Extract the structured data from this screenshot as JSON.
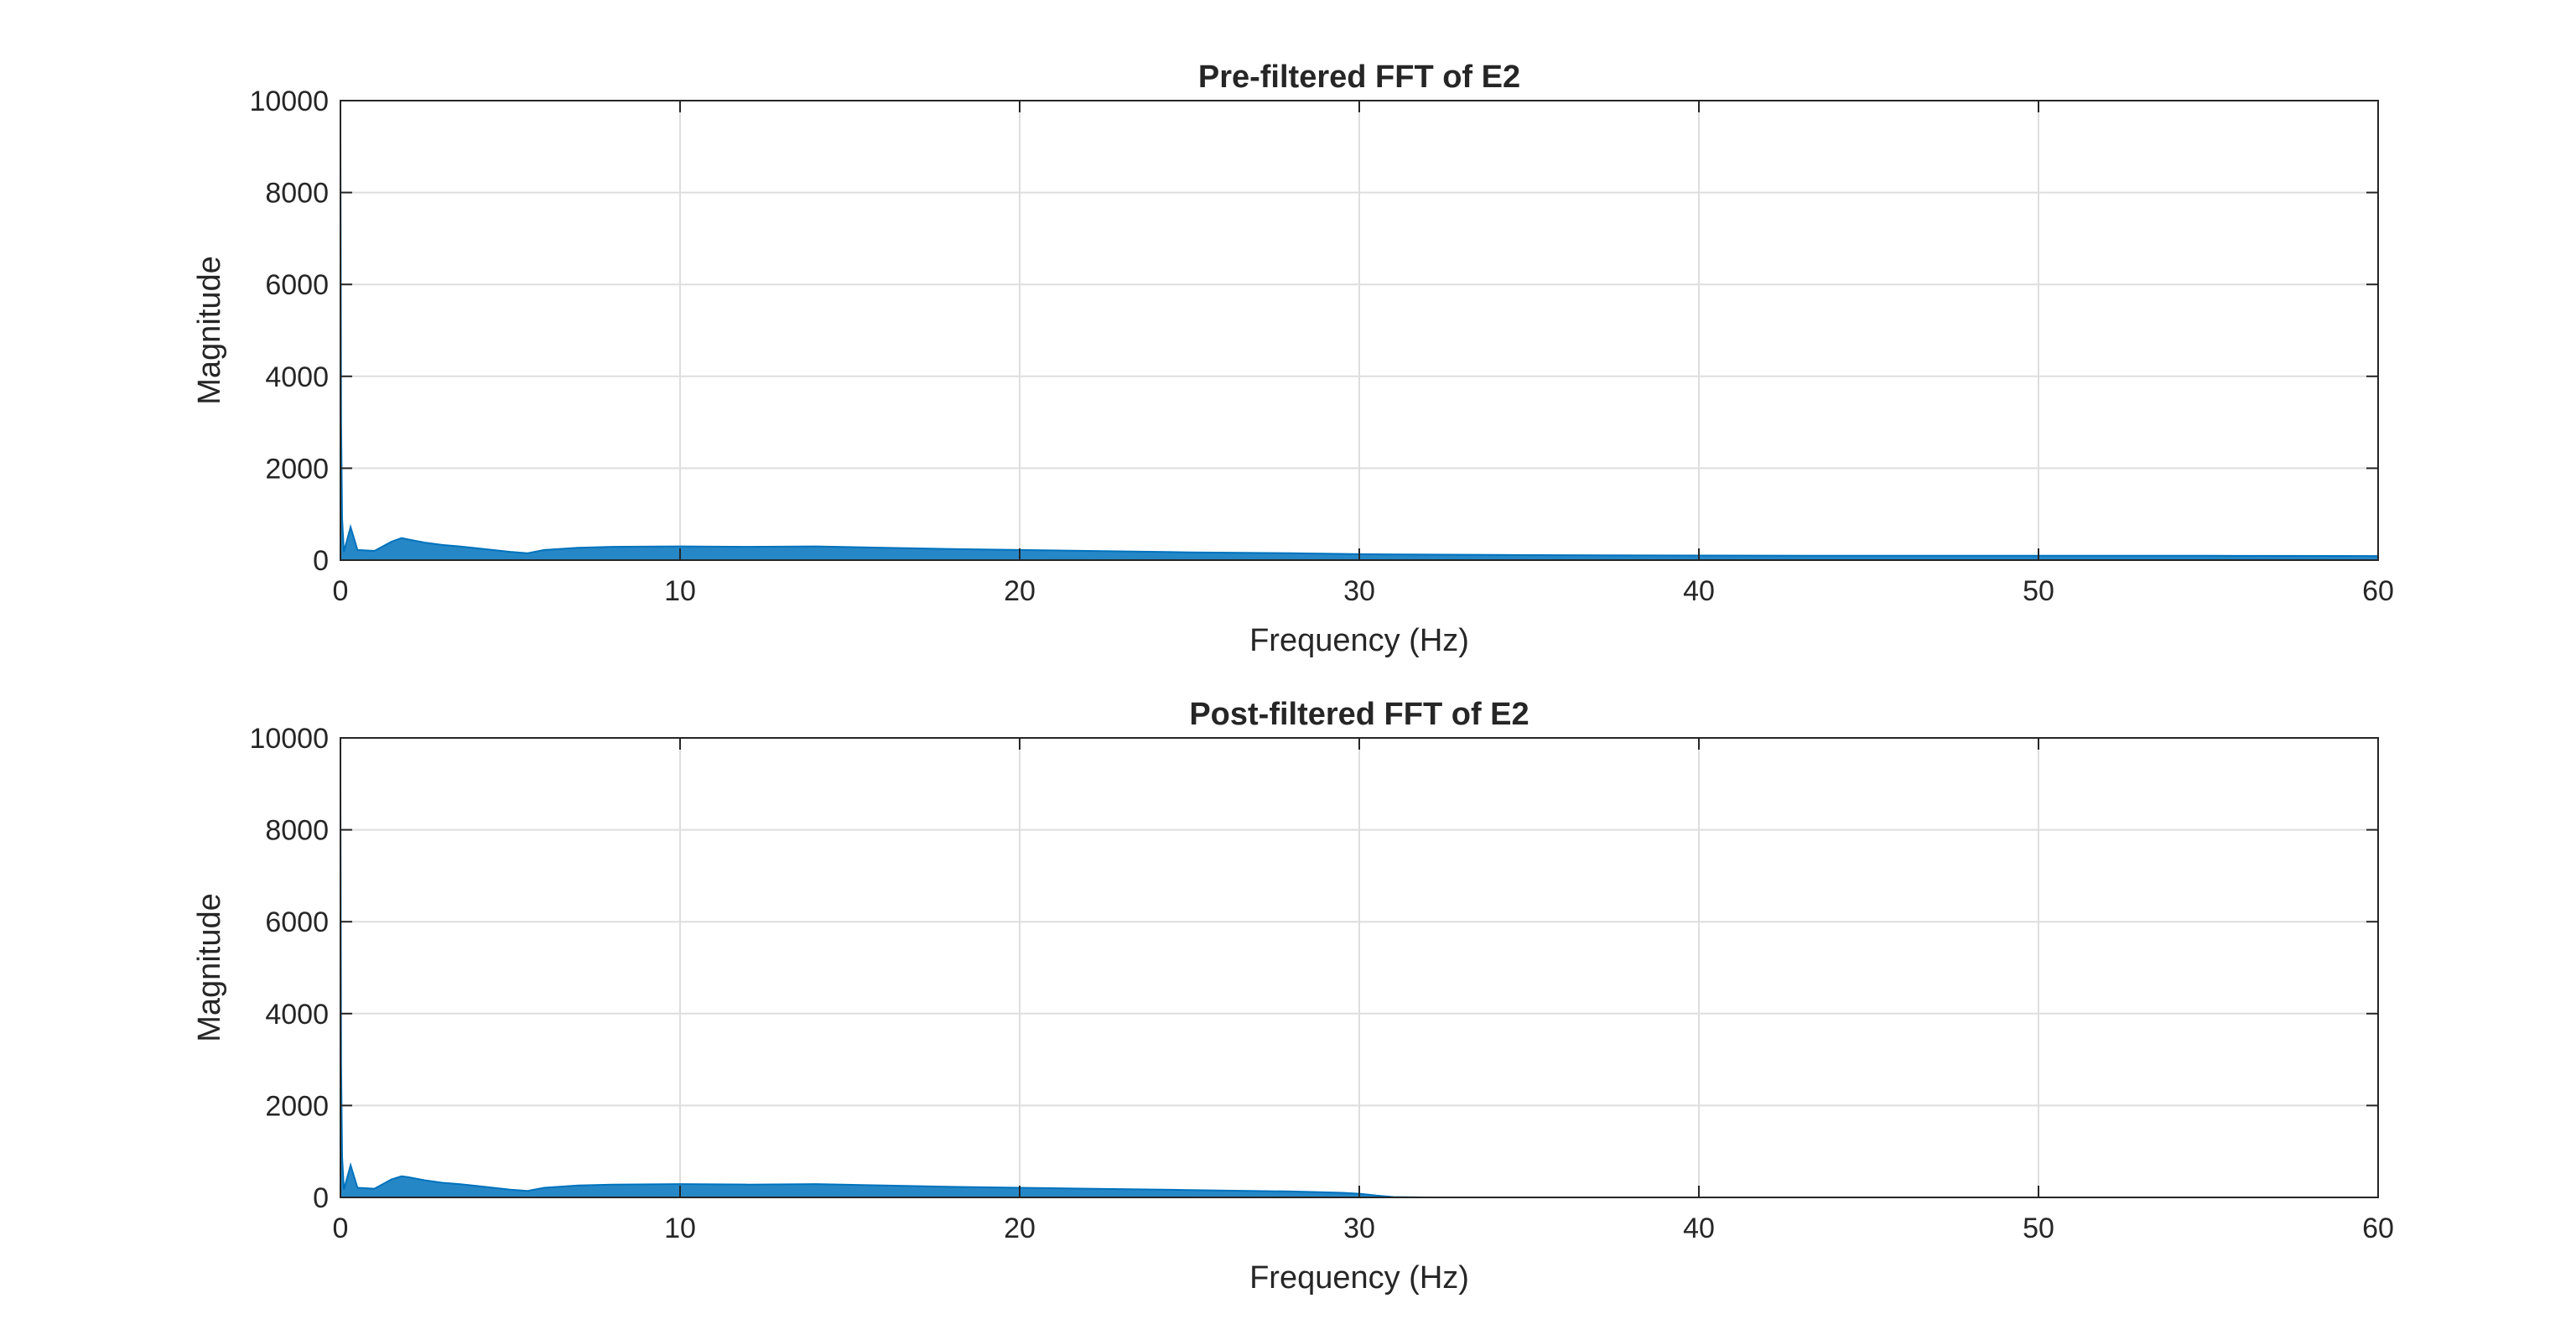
{
  "chart_data": [
    {
      "type": "line",
      "title": "Pre-filtered FFT of E2",
      "xlabel": "Frequency (Hz)",
      "ylabel": "Magnitude",
      "xlim": [
        0,
        60
      ],
      "ylim": [
        0,
        10000
      ],
      "xticks": [
        0,
        10,
        20,
        30,
        40,
        50,
        60
      ],
      "yticks": [
        0,
        2000,
        4000,
        6000,
        8000,
        10000
      ],
      "xtick_labels": [
        "0",
        "10",
        "20",
        "30",
        "40",
        "50",
        "60"
      ],
      "ytick_labels": [
        "0",
        "2000",
        "4000",
        "6000",
        "8000",
        "10000"
      ],
      "grid": true,
      "color": "#0072BD",
      "series": [
        {
          "x": [
            0,
            0.02,
            0.05,
            0.1,
            0.3,
            0.5,
            1.0,
            1.5,
            1.8,
            2.0,
            2.5,
            3.0,
            3.5,
            4.0,
            5.0,
            5.5,
            6.0,
            7.0,
            8.0,
            10.0,
            12.0,
            14.0,
            16.0,
            18.0,
            20.0,
            22.0,
            25.0,
            28.0,
            30.0,
            35.0,
            40.0,
            45.0,
            50.0,
            55.0,
            60.0
          ],
          "y": [
            9200,
            3000,
            900,
            180,
            720,
            220,
            200,
            400,
            480,
            450,
            380,
            330,
            300,
            260,
            180,
            150,
            220,
            270,
            290,
            300,
            290,
            300,
            270,
            240,
            220,
            200,
            170,
            150,
            130,
            110,
            100,
            95,
            95,
            95,
            90
          ]
        }
      ]
    },
    {
      "type": "line",
      "title": "Post-filtered FFT of E2",
      "xlabel": "Frequency (Hz)",
      "ylabel": "Magnitude",
      "xlim": [
        0,
        60
      ],
      "ylim": [
        0,
        10000
      ],
      "xticks": [
        0,
        10,
        20,
        30,
        40,
        50,
        60
      ],
      "yticks": [
        0,
        2000,
        4000,
        6000,
        8000,
        10000
      ],
      "xtick_labels": [
        "0",
        "10",
        "20",
        "30",
        "40",
        "50",
        "60"
      ],
      "ytick_labels": [
        "0",
        "2000",
        "4000",
        "6000",
        "8000",
        "10000"
      ],
      "grid": true,
      "color": "#0072BD",
      "series": [
        {
          "x": [
            0,
            0.02,
            0.05,
            0.1,
            0.3,
            0.5,
            1.0,
            1.5,
            1.8,
            2.0,
            2.5,
            3.0,
            3.5,
            4.0,
            5.0,
            5.5,
            6.0,
            7.0,
            8.0,
            10.0,
            12.0,
            14.0,
            16.0,
            18.0,
            20.0,
            22.0,
            25.0,
            28.0,
            29.5,
            30.0,
            30.5,
            31.0,
            32.0,
            40.0,
            50.0,
            60.0
          ],
          "y": [
            8900,
            2900,
            880,
            170,
            700,
            210,
            190,
            390,
            460,
            440,
            370,
            320,
            290,
            250,
            170,
            140,
            210,
            260,
            280,
            290,
            280,
            290,
            260,
            230,
            210,
            190,
            160,
            130,
            100,
            80,
            40,
            10,
            0,
            0,
            0,
            0
          ]
        }
      ]
    }
  ]
}
